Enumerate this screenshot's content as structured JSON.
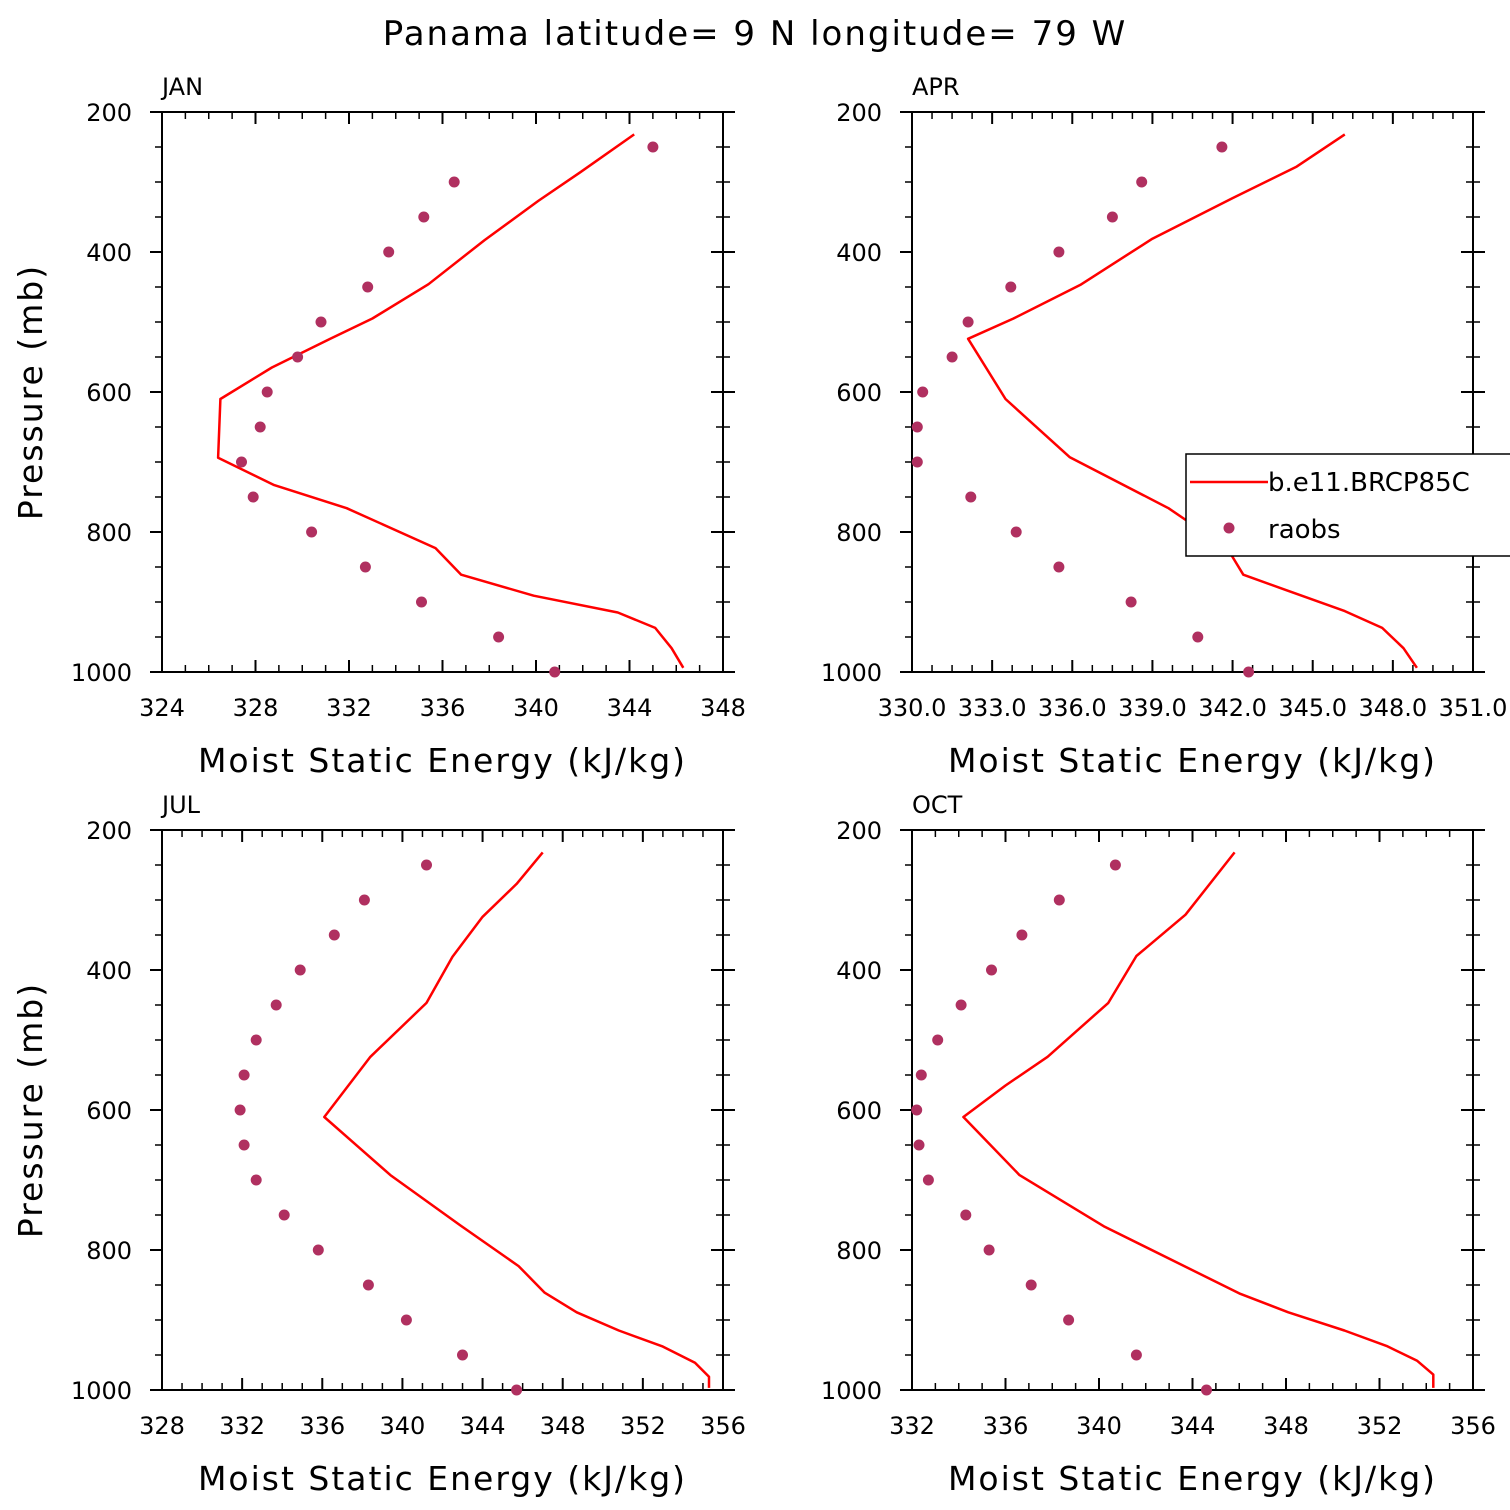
{
  "title": "Panama  latitude= 9 N longitude= 79 W",
  "legend": {
    "model_label": "b.e11.BRCP85C",
    "obs_label": "raobs"
  },
  "colors": {
    "model": "#ff0000",
    "obs": "#b03060"
  },
  "chart_data": [
    {
      "type": "line",
      "title": "JAN",
      "xlabel": "Moist Static Energy (kJ/kg)",
      "ylabel": "Pressure (mb)",
      "xlim": [
        324,
        348
      ],
      "ylim": [
        1000,
        200
      ],
      "xticks": [
        324,
        328,
        332,
        336,
        340,
        344,
        348
      ],
      "xtick_labels": [
        "324",
        "328",
        "332",
        "336",
        "340",
        "344",
        "348"
      ],
      "yticks": [
        200,
        400,
        600,
        800,
        1000
      ],
      "ytick_labels": [
        "200",
        "400",
        "600",
        "800",
        "1000"
      ],
      "series": [
        {
          "name": "b.e11.BRCP85C",
          "x": [
            344.2,
            341.9,
            340.1,
            337.8,
            335.4,
            333.0,
            331.2,
            328.7,
            326.5,
            326.4,
            328.8,
            331.9,
            335.7,
            336.8,
            339.9,
            343.5,
            345.1,
            345.8,
            346.3
          ],
          "y": [
            232,
            286,
            327,
            383,
            446,
            495,
            524,
            565,
            610,
            694,
            733,
            766,
            823,
            861,
            891,
            915,
            937,
            966,
            994
          ]
        },
        {
          "name": "raobs",
          "x": [
            345.0,
            336.5,
            335.2,
            333.7,
            332.8,
            330.8,
            329.8,
            328.5,
            328.2,
            327.4,
            327.9,
            330.4,
            332.7,
            335.1,
            338.4,
            340.8
          ],
          "y": [
            250,
            300,
            350,
            400,
            450,
            500,
            550,
            600,
            650,
            700,
            750,
            800,
            850,
            900,
            950,
            1000
          ]
        }
      ]
    },
    {
      "type": "line",
      "title": "APR",
      "xlabel": "Moist Static Energy (kJ/kg)",
      "ylabel": "",
      "xlim": [
        330.0,
        351.0
      ],
      "ylim": [
        1000,
        200
      ],
      "xticks": [
        330.0,
        333.0,
        336.0,
        339.0,
        342.0,
        345.0,
        348.0,
        351.0
      ],
      "xtick_labels": [
        "330.0",
        "333.0",
        "336.0",
        "339.0",
        "342.0",
        "345.0",
        "348.0",
        "351.0"
      ],
      "yticks": [
        200,
        400,
        600,
        800,
        1000
      ],
      "ytick_labels": [
        "200",
        "400",
        "600",
        "800",
        "1000"
      ],
      "series": [
        {
          "name": "b.e11.BRCP85C",
          "x": [
            346.2,
            344.4,
            342.0,
            339.0,
            336.3,
            333.8,
            332.1,
            333.5,
            335.9,
            339.6,
            341.8,
            342.4,
            344.0,
            346.2,
            347.6,
            348.4,
            348.9
          ],
          "y": [
            232,
            278,
            323,
            381,
            447,
            495,
            524,
            610,
            693,
            766,
            823,
            861,
            883,
            913,
            937,
            966,
            994
          ]
        },
        {
          "name": "raobs",
          "x": [
            341.6,
            338.6,
            337.5,
            335.5,
            333.7,
            332.1,
            331.5,
            330.4,
            330.2,
            330.2,
            332.2,
            333.9,
            335.5,
            338.2,
            340.7,
            342.6
          ],
          "y": [
            250,
            300,
            350,
            400,
            450,
            500,
            550,
            600,
            650,
            700,
            750,
            800,
            850,
            900,
            950,
            1000
          ]
        }
      ]
    },
    {
      "type": "line",
      "title": "JUL",
      "xlabel": "Moist Static Energy (kJ/kg)",
      "ylabel": "Pressure (mb)",
      "xlim": [
        328,
        356
      ],
      "ylim": [
        1000,
        200
      ],
      "xticks": [
        328,
        332,
        336,
        340,
        344,
        348,
        352,
        356
      ],
      "xtick_labels": [
        "328",
        "332",
        "336",
        "340",
        "344",
        "348",
        "352",
        "356"
      ],
      "yticks": [
        200,
        400,
        600,
        800,
        1000
      ],
      "ytick_labels": [
        "200",
        "400",
        "600",
        "800",
        "1000"
      ],
      "series": [
        {
          "name": "b.e11.BRCP85C",
          "x": [
            347.0,
            345.7,
            344.0,
            342.5,
            341.2,
            338.4,
            336.1,
            339.4,
            342.9,
            345.8,
            347.1,
            348.7,
            350.8,
            353.0,
            354.6,
            355.3,
            355.3
          ],
          "y": [
            232,
            277,
            324,
            381,
            447,
            524,
            610,
            693,
            765,
            823,
            861,
            889,
            915,
            938,
            961,
            981,
            997
          ]
        },
        {
          "name": "raobs",
          "x": [
            341.2,
            338.1,
            336.6,
            334.9,
            333.7,
            332.7,
            332.1,
            331.9,
            332.1,
            332.7,
            334.1,
            335.8,
            338.3,
            340.2,
            343.0,
            345.7
          ],
          "y": [
            250,
            300,
            350,
            400,
            450,
            500,
            550,
            600,
            650,
            700,
            750,
            800,
            850,
            900,
            950,
            1000
          ]
        }
      ]
    },
    {
      "type": "line",
      "title": "OCT",
      "xlabel": "Moist Static Energy (kJ/kg)",
      "ylabel": "",
      "xlim": [
        332,
        356
      ],
      "ylim": [
        1000,
        200
      ],
      "xticks": [
        332,
        336,
        340,
        344,
        348,
        352,
        356
      ],
      "xtick_labels": [
        "332",
        "336",
        "340",
        "344",
        "348",
        "352",
        "356"
      ],
      "yticks": [
        200,
        400,
        600,
        800,
        1000
      ],
      "ytick_labels": [
        "200",
        "400",
        "600",
        "800",
        "1000"
      ],
      "series": [
        {
          "name": "b.e11.BRCP85C",
          "x": [
            345.8,
            343.7,
            341.6,
            340.4,
            337.8,
            336.0,
            334.2,
            336.6,
            340.2,
            346.0,
            348.1,
            350.5,
            352.3,
            353.6,
            354.3,
            354.3
          ],
          "y": [
            232,
            321,
            380,
            447,
            524,
            565,
            610,
            693,
            766,
            862,
            889,
            915,
            937,
            958,
            978,
            997
          ]
        },
        {
          "name": "raobs",
          "x": [
            340.7,
            338.3,
            336.7,
            335.4,
            334.1,
            333.1,
            332.4,
            332.2,
            332.3,
            332.7,
            334.3,
            335.3,
            337.1,
            338.7,
            341.6,
            344.6
          ],
          "y": [
            250,
            300,
            350,
            400,
            450,
            500,
            550,
            600,
            650,
            700,
            750,
            800,
            850,
            900,
            950,
            1000
          ]
        }
      ]
    }
  ]
}
